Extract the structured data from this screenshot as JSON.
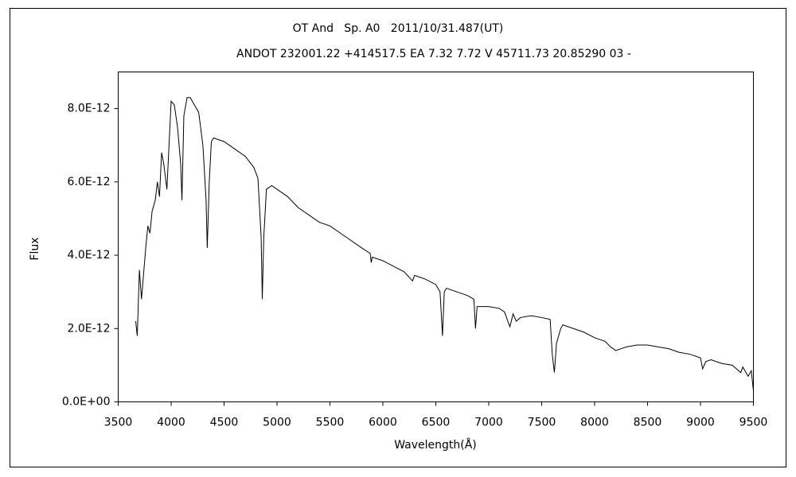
{
  "chart_data": {
    "type": "line",
    "title": "OT And   Sp. A0   2011/10/31.487(UT)",
    "subtitle": "ANDOT 232001.22 +414517.5 EA 7.32 7.72 V 45711.73 20.85290 03 -",
    "x_label": "Wavelength(Å)",
    "y_label": "Flux",
    "xlim": [
      3500,
      9500
    ],
    "xticks": [
      3500,
      4000,
      4500,
      5000,
      5500,
      6000,
      6500,
      7000,
      7500,
      8000,
      8500,
      9000,
      9500
    ],
    "ylim": [
      0,
      9e-12
    ],
    "yticks": [
      {
        "value": 0,
        "label": "0.0E+00"
      },
      {
        "value": 2e-12,
        "label": "2.0E-12"
      },
      {
        "value": 4e-12,
        "label": "4.0E-12"
      },
      {
        "value": 6e-12,
        "label": "6.0E-12"
      },
      {
        "value": 8e-12,
        "label": "8.0E-12"
      }
    ],
    "series": [
      {
        "color": "#000000",
        "x": [
          3665,
          3680,
          3700,
          3720,
          3740,
          3760,
          3780,
          3800,
          3820,
          3850,
          3870,
          3890,
          3910,
          3930,
          3960,
          3980,
          4000,
          4030,
          4060,
          4090,
          4102,
          4120,
          4150,
          4180,
          4220,
          4260,
          4300,
          4330,
          4341,
          4360,
          4380,
          4400,
          4500,
          4600,
          4700,
          4780,
          4820,
          4850,
          4861,
          4875,
          4900,
          4950,
          5000,
          5100,
          5200,
          5300,
          5400,
          5500,
          5600,
          5700,
          5800,
          5880,
          5890,
          5900,
          6000,
          6100,
          6200,
          6280,
          6300,
          6400,
          6500,
          6540,
          6563,
          6580,
          6600,
          6700,
          6800,
          6860,
          6875,
          6890,
          7000,
          7100,
          7150,
          7180,
          7200,
          7230,
          7260,
          7300,
          7400,
          7500,
          7580,
          7600,
          7620,
          7640,
          7680,
          7700,
          7800,
          7900,
          8000,
          8100,
          8150,
          8200,
          8300,
          8400,
          8500,
          8600,
          8700,
          8800,
          8900,
          9000,
          9020,
          9050,
          9100,
          9200,
          9300,
          9380,
          9400,
          9450,
          9480,
          9500
        ],
        "values": [
          2.2e-12,
          1.8e-12,
          3.6e-12,
          2.8e-12,
          3.5e-12,
          4.2e-12,
          4.8e-12,
          4.6e-12,
          5.2e-12,
          5.5e-12,
          6e-12,
          5.6e-12,
          6.8e-12,
          6.5e-12,
          5.8e-12,
          7e-12,
          8.2e-12,
          8.1e-12,
          7.5e-12,
          6.5e-12,
          5.5e-12,
          7.8e-12,
          8.3e-12,
          8.3e-12,
          8.1e-12,
          7.9e-12,
          7e-12,
          5.5e-12,
          4.2e-12,
          6e-12,
          7.1e-12,
          7.2e-12,
          7.1e-12,
          6.9e-12,
          6.7e-12,
          6.4e-12,
          6.1e-12,
          4.5e-12,
          2.8e-12,
          4.5e-12,
          5.8e-12,
          5.9e-12,
          5.8e-12,
          5.6e-12,
          5.3e-12,
          5.1e-12,
          4.9e-12,
          4.8e-12,
          4.6e-12,
          4.4e-12,
          4.2e-12,
          4.05e-12,
          3.8e-12,
          3.95e-12,
          3.85e-12,
          3.7e-12,
          3.55e-12,
          3.3e-12,
          3.45e-12,
          3.35e-12,
          3.2e-12,
          3e-12,
          1.8e-12,
          3e-12,
          3.1e-12,
          3e-12,
          2.9e-12,
          2.8e-12,
          2e-12,
          2.6e-12,
          2.6e-12,
          2.55e-12,
          2.45e-12,
          2.2e-12,
          2.05e-12,
          2.4e-12,
          2.2e-12,
          2.3e-12,
          2.35e-12,
          2.3e-12,
          2.25e-12,
          1.3e-12,
          8e-13,
          1.6e-12,
          2e-12,
          2.1e-12,
          2e-12,
          1.9e-12,
          1.75e-12,
          1.65e-12,
          1.5e-12,
          1.4e-12,
          1.5e-12,
          1.55e-12,
          1.55e-12,
          1.5e-12,
          1.45e-12,
          1.35e-12,
          1.3e-12,
          1.2e-12,
          9e-13,
          1.1e-12,
          1.15e-12,
          1.05e-12,
          1e-12,
          8e-13,
          9.5e-13,
          7e-13,
          8.5e-13,
          3e-13
        ]
      }
    ]
  }
}
